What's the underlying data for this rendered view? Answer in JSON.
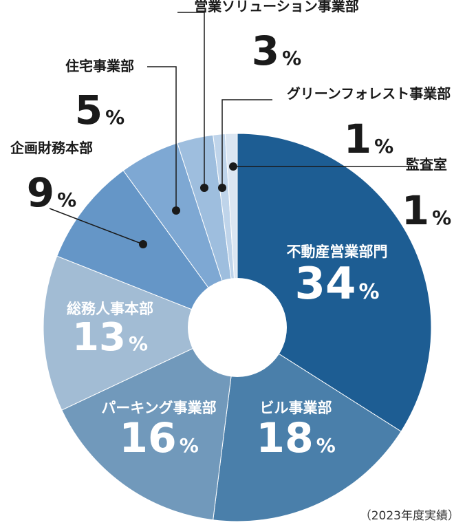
{
  "chart_data": {
    "type": "pie",
    "categories": [
      "不動産営業部門",
      "ビル事業部",
      "パーキング事業部",
      "総務人事本部",
      "企画財務本部",
      "住宅事業部",
      "営業ソリューション事業部",
      "グリーンフォレスト事業部",
      "監査室"
    ],
    "values": [
      34,
      18,
      16,
      13,
      9,
      5,
      3,
      1,
      1
    ],
    "unit": "%",
    "colors": [
      "#1d5d93",
      "#4a7faa",
      "#7199bb",
      "#a2bcd4",
      "#6596c7",
      "#7ea8d3",
      "#9ebede",
      "#bfd4ea",
      "#dbe6f2"
    ],
    "label_colors": [
      "#ffffff",
      "#ffffff",
      "#ffffff",
      "#ffffff",
      "#1a1a1a",
      "#1a1a1a",
      "#1a1a1a",
      "#1a1a1a",
      "#1a1a1a"
    ],
    "outside_labels": [
      false,
      false,
      false,
      false,
      true,
      true,
      true,
      true,
      true
    ],
    "note": "（2023年度実績）"
  }
}
